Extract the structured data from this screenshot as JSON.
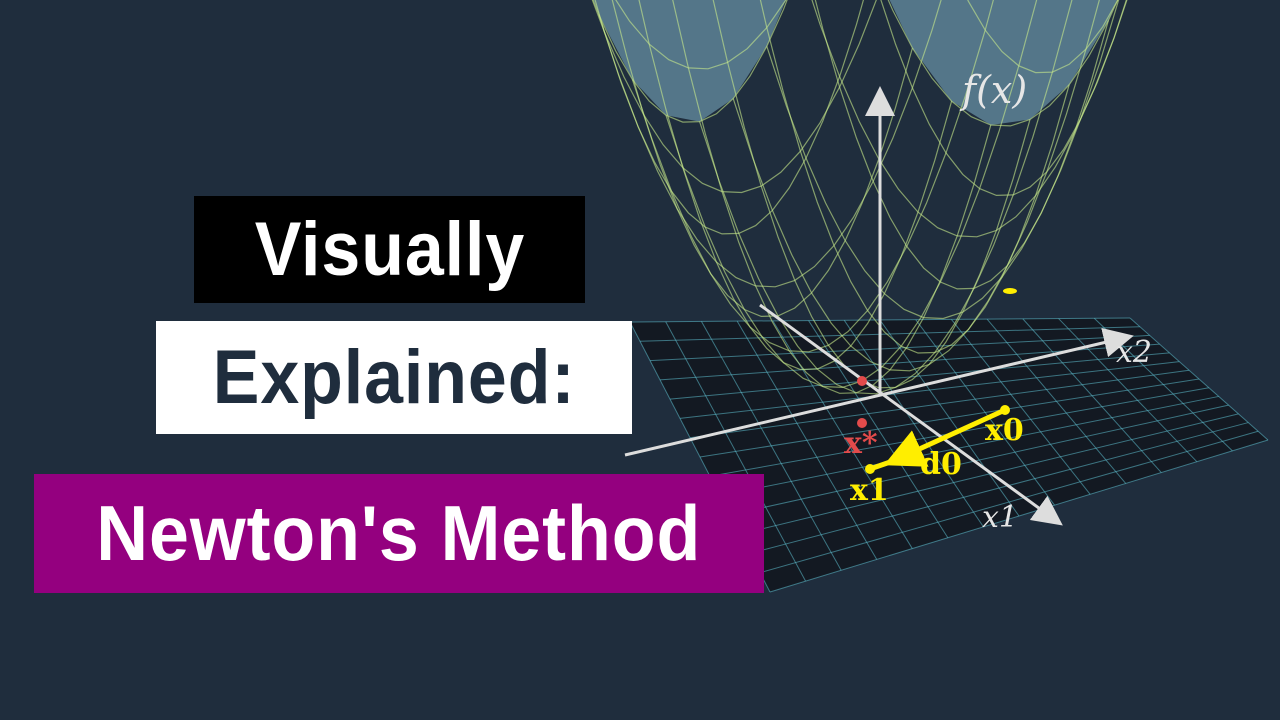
{
  "title": {
    "line1": "Visually",
    "line2": "Explained:",
    "line3": "Newton's Method"
  },
  "figure": {
    "axis_labels": {
      "vertical": "f(x)",
      "x2": "x2",
      "x1": "x1"
    },
    "point_labels": {
      "optimum": "x*",
      "start": "x0",
      "step": "d0",
      "next": "x1"
    }
  },
  "colors": {
    "background": "#1f2d3d",
    "title_line1_bg": "#000000",
    "title_line2_bg": "#ffffff",
    "title_line3_bg": "#94007f",
    "surface": "#7fb3c8",
    "surface_grid": "#c8e98a",
    "plane_grid": "#5fbfd0",
    "highlight": "#ffee00",
    "optimum": "#e34b4b",
    "axis": "#dddddd"
  }
}
